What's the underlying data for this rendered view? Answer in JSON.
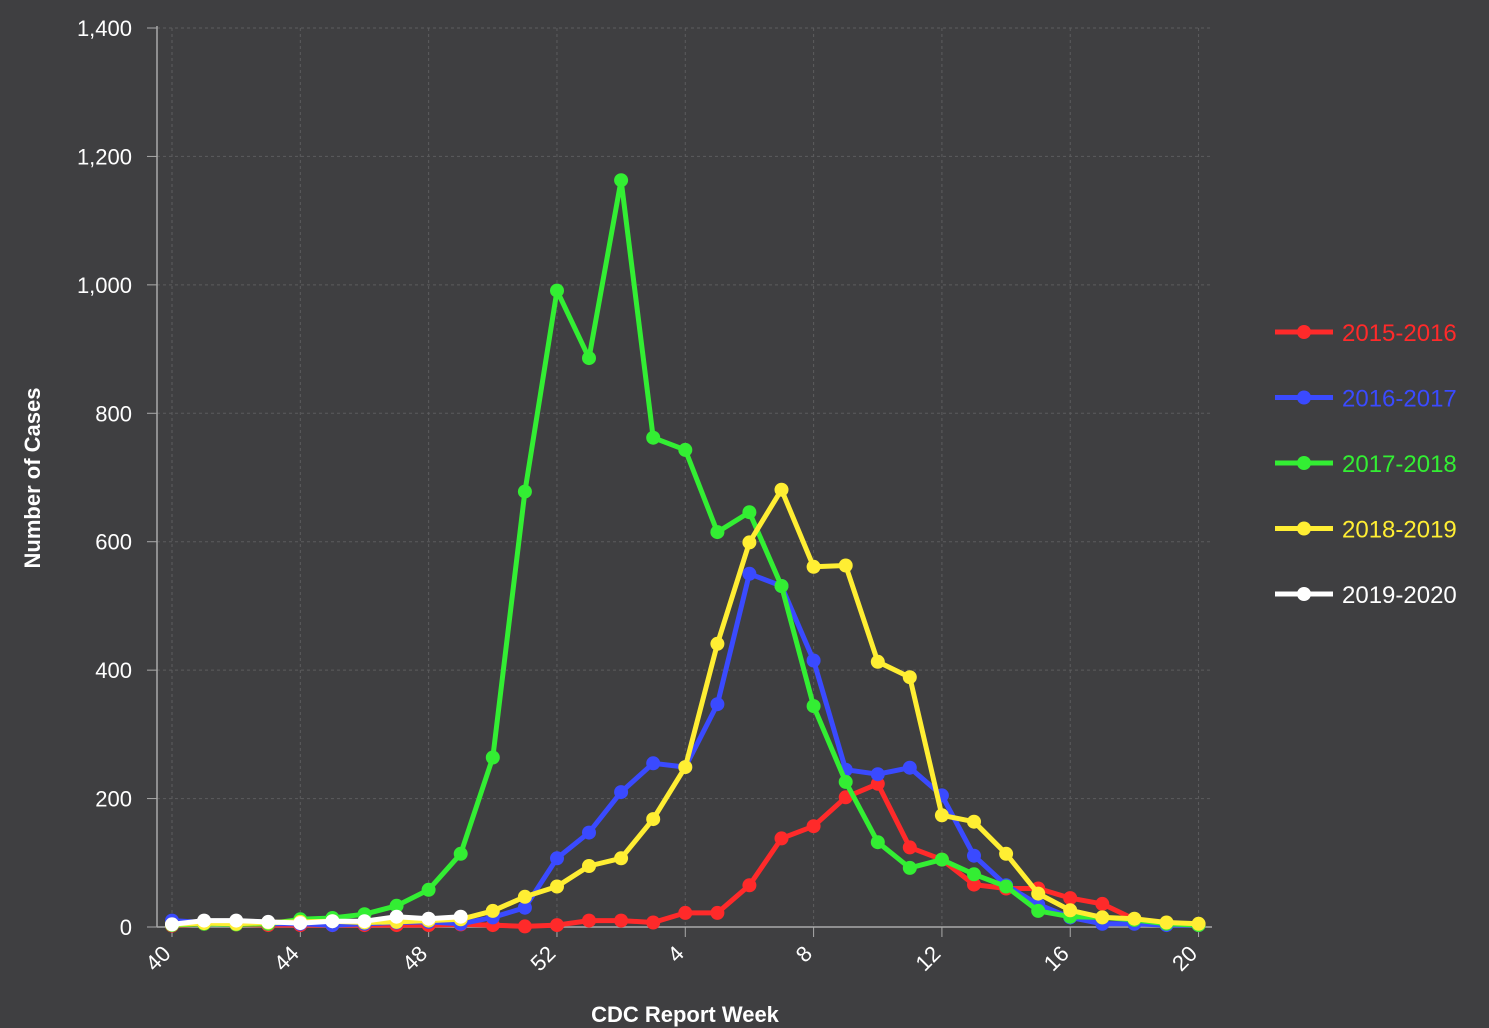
{
  "chart_data": {
    "type": "line",
    "xlabel": "CDC Report Week",
    "ylabel": "Number of Cases",
    "ylim": [
      0,
      1400
    ],
    "yticks": [
      0,
      200,
      400,
      600,
      800,
      1000,
      1200,
      1400
    ],
    "ytick_labels": [
      "0",
      "200",
      "400",
      "600",
      "800",
      "1,000",
      "1,200",
      "1,400"
    ],
    "x": [
      "40",
      "41",
      "42",
      "43",
      "44",
      "45",
      "46",
      "47",
      "48",
      "49",
      "50",
      "51",
      "52",
      "1",
      "2",
      "3",
      "4",
      "5",
      "6",
      "7",
      "8",
      "9",
      "10",
      "11",
      "12",
      "13",
      "14",
      "15",
      "16",
      "17",
      "18",
      "19",
      "20"
    ],
    "xtick_labels": [
      "40",
      "44",
      "48",
      "52",
      "4",
      "8",
      "12",
      "16",
      "20"
    ],
    "grid": true,
    "legend_position": "right",
    "background": "#3f3f41",
    "series": [
      {
        "name": "2015-2016",
        "color": "#ff2a2a",
        "values": [
          2,
          5,
          4,
          3,
          3,
          3,
          3,
          3,
          3,
          4,
          3,
          1,
          3,
          10,
          10,
          7,
          22,
          22,
          65,
          138,
          157,
          202,
          223,
          124,
          105,
          66,
          60,
          60,
          45,
          36,
          12,
          5,
          3
        ]
      },
      {
        "name": "2016-2017",
        "color": "#3a4aff",
        "values": [
          10,
          7,
          6,
          5,
          5,
          3,
          5,
          7,
          8,
          5,
          15,
          30,
          107,
          147,
          210,
          255,
          249,
          347,
          550,
          531,
          415,
          245,
          238,
          248,
          205,
          111,
          65,
          35,
          15,
          5,
          5,
          3,
          3
        ]
      },
      {
        "name": "2017-2018",
        "color": "#33ee33",
        "values": [
          3,
          5,
          4,
          5,
          12,
          14,
          20,
          33,
          58,
          114,
          264,
          678,
          991,
          886,
          1163,
          762,
          743,
          615,
          646,
          531,
          344,
          226,
          132,
          92,
          105,
          82,
          63,
          25,
          16,
          15,
          11,
          5,
          3
        ]
      },
      {
        "name": "2018-2019",
        "color": "#ffee33",
        "values": [
          4,
          6,
          5,
          7,
          8,
          9,
          7,
          8,
          10,
          12,
          25,
          47,
          63,
          95,
          107,
          168,
          249,
          441,
          599,
          681,
          561,
          563,
          413,
          389,
          174,
          164,
          114,
          52,
          26,
          15,
          13,
          7,
          5
        ]
      },
      {
        "name": "2019-2020",
        "color": "#ffffff",
        "values": [
          4,
          10,
          10,
          8,
          6,
          9,
          9,
          16,
          13,
          16,
          null,
          null,
          null,
          null,
          null,
          null,
          null,
          null,
          null,
          null,
          null,
          null,
          null,
          null,
          null,
          null,
          null,
          null,
          null,
          null,
          null,
          null,
          null
        ]
      }
    ]
  }
}
